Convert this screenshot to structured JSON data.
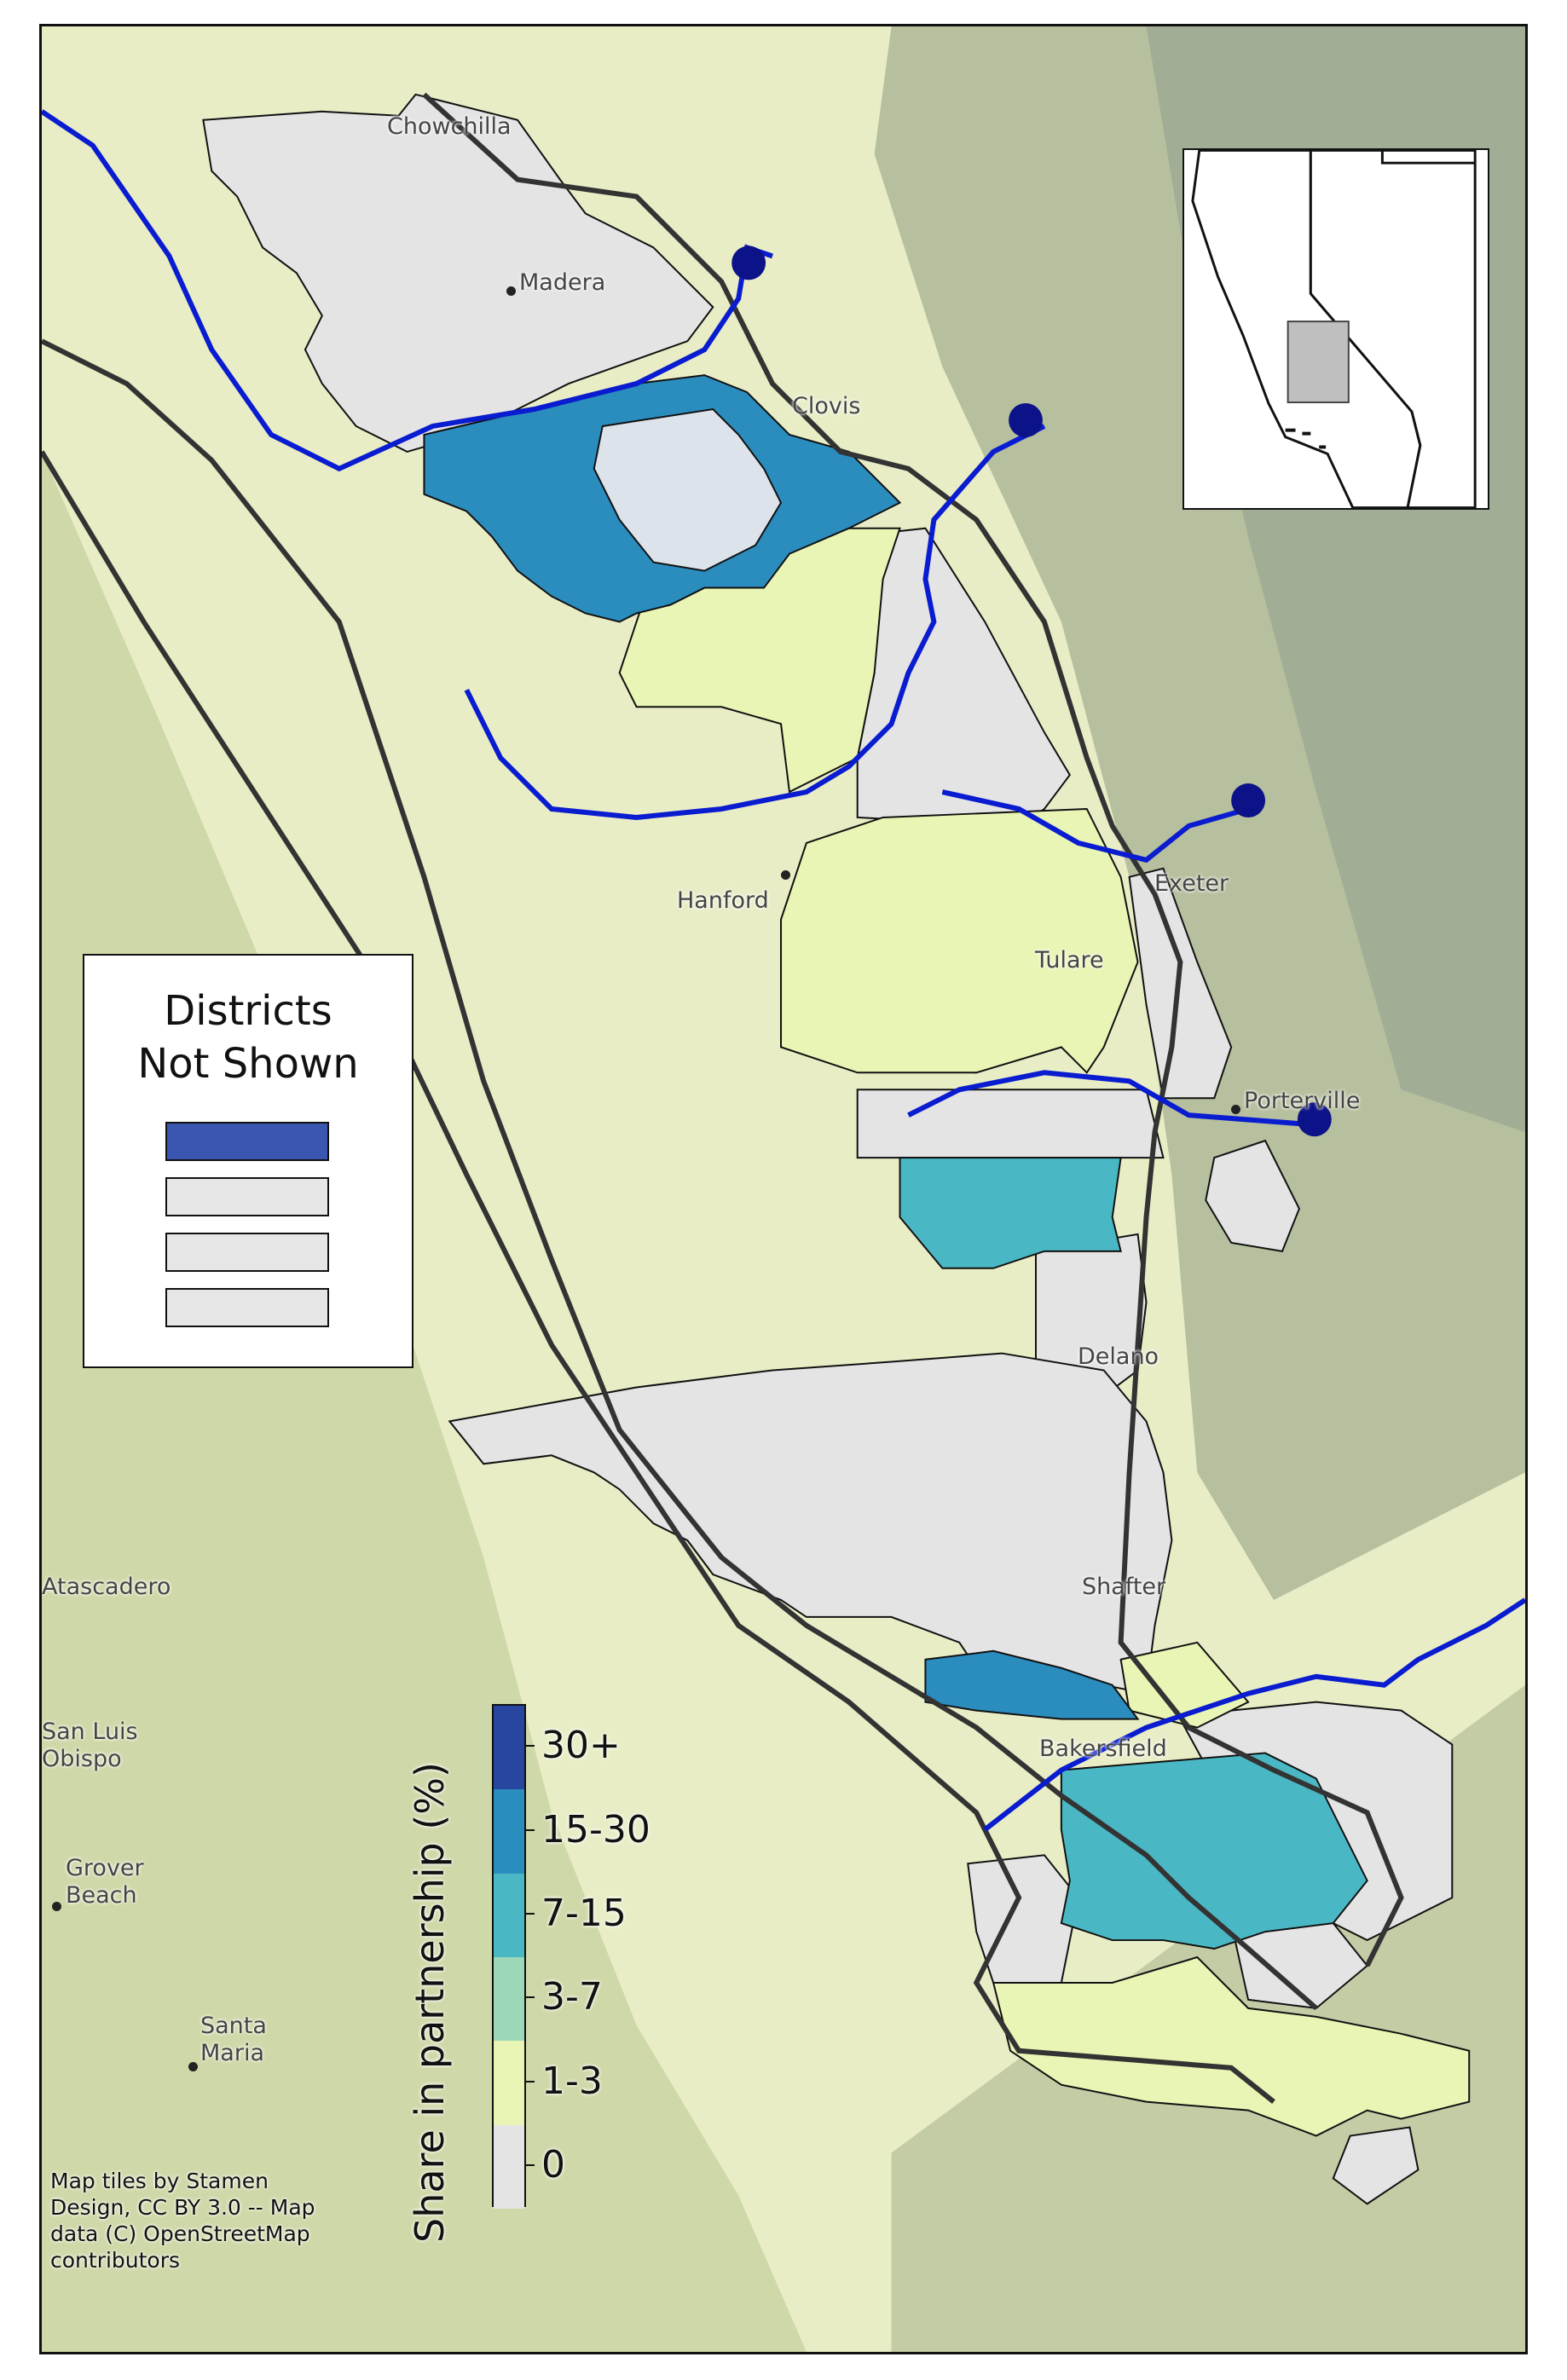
{
  "map": {
    "place_labels": [
      {
        "name": "Chowchilla",
        "text": "Chowchilla"
      },
      {
        "name": "Madera",
        "text": "Madera"
      },
      {
        "name": "Clovis",
        "text": "Clovis"
      },
      {
        "name": "Hanford",
        "text": "Hanford"
      },
      {
        "name": "Exeter",
        "text": "Exeter"
      },
      {
        "name": "Tulare",
        "text": "Tulare"
      },
      {
        "name": "Porterville",
        "text": "Porterville"
      },
      {
        "name": "Delano",
        "text": "Delano"
      },
      {
        "name": "Shafter",
        "text": "Shafter"
      },
      {
        "name": "Atascadero",
        "text": "Atascadero"
      },
      {
        "name": "San Luis Obispo",
        "text": "San Luis\nObispo"
      },
      {
        "name": "Grover Beach",
        "text": "Grover\nBeach"
      },
      {
        "name": "Santa Maria",
        "text": "Santa\nMaria"
      },
      {
        "name": "Bakersfield",
        "text": "Bakersfield"
      }
    ],
    "attribution": "Map tiles by Stamen\nDesign, CC BY 3.0 -- Map\ndata (C) OpenStreetMap\ncontributors",
    "colors": {
      "background_valley": "#e9edc6",
      "background_hills": "#cfd8a8",
      "mountains": "#a9b59a",
      "district_outline": "#111111",
      "river": "#0a1ccf",
      "canal": "#333333",
      "reservoir_marker": "#0c1287"
    }
  },
  "legend": {
    "title": "Districts\nNot Shown",
    "swatches": [
      {
        "name": "30+",
        "color": "#3a56b0"
      },
      {
        "name": "0",
        "color": "#e6e6e6"
      },
      {
        "name": "0",
        "color": "#e6e6e6"
      },
      {
        "name": "0",
        "color": "#e6e6e6"
      }
    ]
  },
  "colorbar": {
    "title": "Share in partnership (%)",
    "bins": [
      {
        "label": "30+",
        "color": "#2845a0"
      },
      {
        "label": "15-30",
        "color": "#2b8cbe"
      },
      {
        "label": "7-15",
        "color": "#4ab8c4"
      },
      {
        "label": "3-7",
        "color": "#9cd8b8"
      },
      {
        "label": "1-3",
        "color": "#e8f5b4"
      },
      {
        "label": "0",
        "color": "#e4e4e4"
      }
    ]
  },
  "inset": {
    "states": [
      "California",
      "Nevada"
    ],
    "highlight_color": "#bfbfbf"
  }
}
